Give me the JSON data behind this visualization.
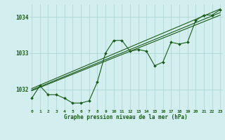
{
  "title": "Graphe pression niveau de la mer (hPa)",
  "xlabel_hours": [
    0,
    1,
    2,
    3,
    4,
    5,
    6,
    7,
    8,
    9,
    10,
    11,
    12,
    13,
    14,
    15,
    16,
    17,
    18,
    19,
    20,
    21,
    22,
    23
  ],
  "pressure_data": [
    1031.75,
    1032.1,
    1031.85,
    1031.85,
    1031.75,
    1031.62,
    1031.62,
    1031.68,
    1032.2,
    1033.0,
    1033.35,
    1033.35,
    1033.05,
    1033.1,
    1033.05,
    1032.65,
    1032.75,
    1033.3,
    1033.25,
    1033.3,
    1033.9,
    1034.05,
    1034.05,
    1034.2
  ],
  "ylim": [
    1031.45,
    1034.35
  ],
  "yticks": [
    1032,
    1033,
    1034
  ],
  "bg_color": "#d2eeee",
  "grid_color": "#aad0d0",
  "line_color": "#1a5c1a",
  "text_color": "#1a5c1a",
  "trend_lines": [
    [
      [
        0,
        23
      ],
      [
        1032.02,
        1034.22
      ]
    ],
    [
      [
        0,
        23
      ],
      [
        1031.98,
        1034.12
      ]
    ],
    [
      [
        0,
        23
      ],
      [
        1031.96,
        1034.05
      ]
    ]
  ]
}
